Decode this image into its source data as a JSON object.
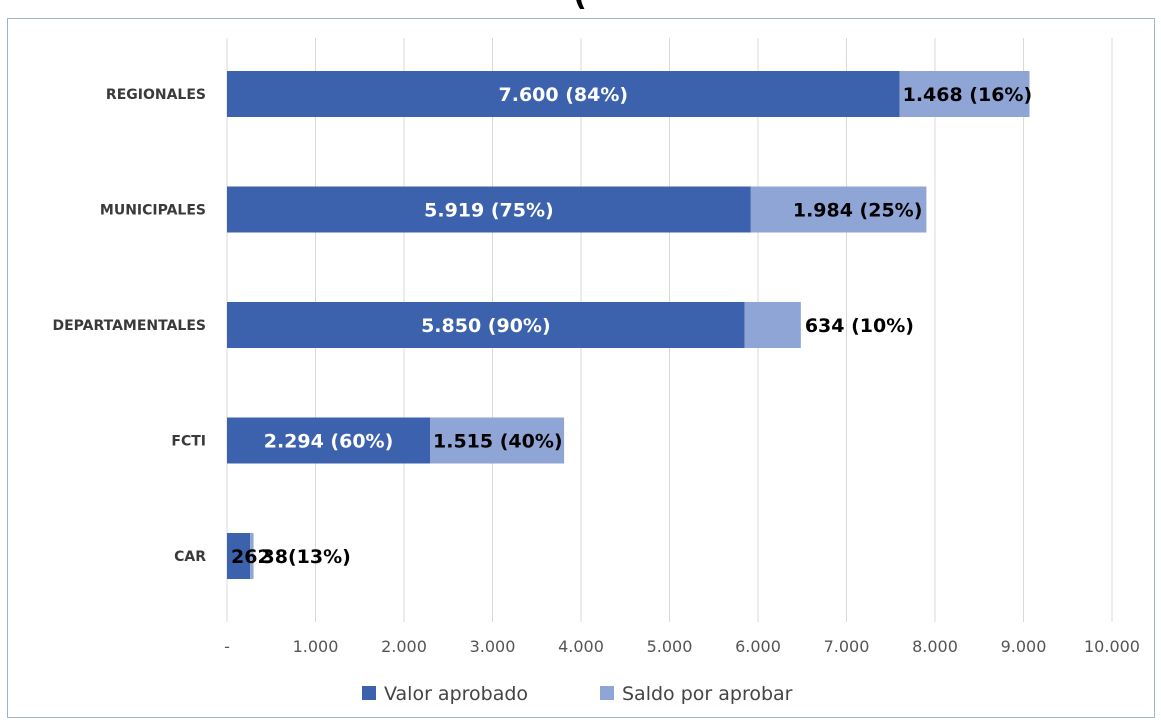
{
  "chart_data": {
    "type": "bar",
    "orientation": "horizontal",
    "stacked": true,
    "title": "(",
    "categories": [
      "REGIONALES",
      "MUNICIPALES",
      "DEPARTAMENTALES",
      "FCTI",
      "CAR"
    ],
    "series": [
      {
        "name": "Valor aprobado",
        "color": "#3c62ad",
        "values": [
          7600,
          5919,
          5850,
          2294,
          262
        ],
        "labels": [
          "7.600  (84%)",
          "5.919  (75%)",
          "5.850  (90%)",
          "2.294  (60%)",
          "262"
        ]
      },
      {
        "name": "Saldo por aprobar",
        "color": "#8fa5d6",
        "values": [
          1468,
          1984,
          634,
          1515,
          38
        ],
        "labels": [
          "1.468 (16%)",
          "1.984 (25%)",
          "634 (10%)",
          "1.515 (40%)",
          "38(13%)"
        ]
      }
    ],
    "xlim": [
      0,
      10000
    ],
    "xticks": [
      0,
      1000,
      2000,
      3000,
      4000,
      5000,
      6000,
      7000,
      8000,
      9000,
      10000
    ],
    "xtick_labels": [
      "-",
      "1.000",
      "2.000",
      "3.000",
      "4.000",
      "5.000",
      "6.000",
      "7.000",
      "8.000",
      "9.000",
      "10.000"
    ],
    "grid": true,
    "legend": "bottom"
  }
}
